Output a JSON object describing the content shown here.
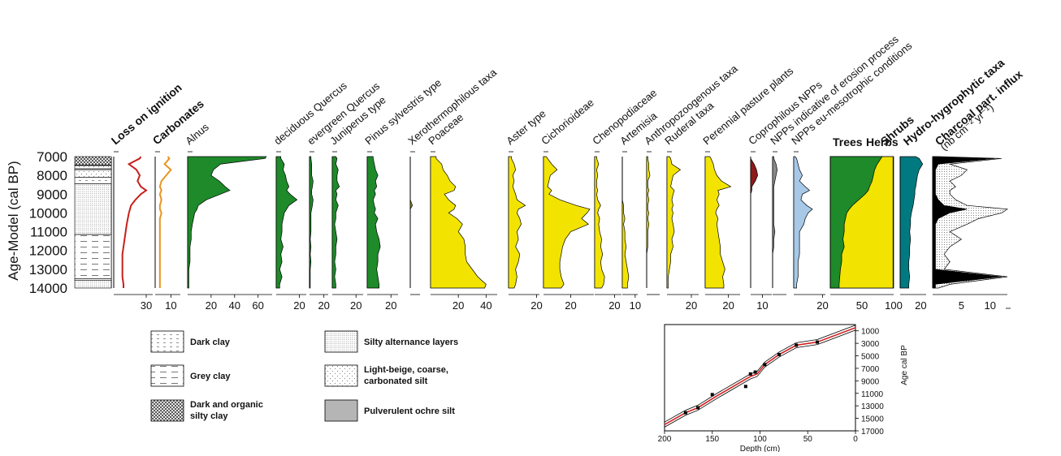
{
  "chart_data": [
    {
      "type": "area",
      "ylabel": "Age-Model (cal BP)",
      "yticks": [
        "7000",
        "8000",
        "9000",
        "10000",
        "11000",
        "12000",
        "13000",
        "14000"
      ],
      "ylim": [
        7000,
        14000
      ],
      "ages": [
        7000,
        7100,
        7400,
        7700,
        8000,
        8300,
        8600,
        8800,
        9000,
        9300,
        9600,
        9800,
        10000,
        10300,
        10600,
        11000,
        11400,
        11800,
        12200,
        12600,
        13000,
        13400,
        13800,
        14000
      ],
      "columns": [
        {
          "label": "Loss on ignition",
          "bold": true,
          "style": "line",
          "color": "#c8201c",
          "xmax": 36,
          "ticks": [
            30
          ],
          "values": [
            25,
            24,
            14,
            21,
            24,
            22,
            25,
            30,
            25,
            20,
            16,
            15,
            14,
            13,
            12,
            11,
            10,
            9,
            8,
            8,
            8,
            8,
            9,
            9
          ]
        },
        {
          "label": "Carbonates",
          "bold": true,
          "style": "line",
          "color": "#e69520",
          "xmax": 16,
          "ticks": [
            10
          ],
          "values": [
            8,
            9,
            6,
            10,
            7,
            4,
            3,
            4,
            3,
            4,
            3,
            3,
            4,
            3,
            3,
            3,
            3,
            3,
            3,
            3,
            3,
            3,
            3,
            3
          ]
        },
        {
          "label": "Alnus",
          "bold": false,
          "style": "area",
          "color": "#1e8a2a",
          "xmax": 72,
          "ticks": [
            20,
            40,
            60
          ],
          "values": [
            67,
            66,
            28,
            22,
            20,
            27,
            32,
            36,
            28,
            16,
            9,
            8,
            6,
            5,
            4,
            3,
            3,
            2,
            2,
            2,
            1,
            1,
            1,
            1
          ]
        },
        {
          "label": "deciduous Quercus",
          "bold": false,
          "style": "area",
          "color": "#1e8a2a",
          "xmax": 26,
          "ticks": [
            20
          ],
          "values": [
            4,
            4,
            7,
            6,
            8,
            9,
            11,
            9,
            12,
            18,
            11,
            9,
            7,
            6,
            5,
            5,
            4,
            6,
            4,
            5,
            3,
            5,
            3,
            3
          ]
        },
        {
          "label": "evergreen Quercus",
          "bold": false,
          "style": "area",
          "color": "#1e8a2a",
          "xmax": 26,
          "ticks": [
            20
          ],
          "values": [
            2,
            2,
            3,
            3,
            3,
            5,
            4,
            3,
            3,
            5,
            4,
            3,
            2,
            2,
            2,
            2,
            1,
            2,
            1,
            2,
            1,
            1,
            1,
            1
          ]
        },
        {
          "label": "Juniperus type",
          "bold": false,
          "style": "area",
          "color": "#1e8a2a",
          "xmax": 26,
          "ticks": [
            20
          ],
          "values": [
            3,
            4,
            3,
            5,
            4,
            4,
            6,
            3,
            4,
            3,
            5,
            4,
            3,
            3,
            2,
            3,
            4,
            3,
            3,
            2,
            3,
            2,
            3,
            3
          ]
        },
        {
          "label": "Pinus sylvestris type",
          "bold": false,
          "style": "area",
          "color": "#1e8a2a",
          "xmax": 26,
          "ticks": [
            20
          ],
          "values": [
            5,
            5,
            6,
            7,
            9,
            7,
            8,
            6,
            7,
            5,
            6,
            7,
            6,
            9,
            7,
            8,
            10,
            11,
            9,
            9,
            8,
            9,
            10,
            10
          ]
        },
        {
          "label": "Xerothermophilous taxa",
          "bold": false,
          "style": "area",
          "color": "#8a8a1a",
          "xmax": 9,
          "ticks": [],
          "values": [
            0,
            0,
            0,
            0,
            0,
            0,
            0,
            0,
            0,
            0,
            2,
            0,
            0,
            0,
            0,
            0,
            0,
            0,
            0,
            0,
            0,
            0,
            0,
            0
          ]
        },
        {
          "label": "Poaceae",
          "bold": false,
          "style": "area",
          "color": "#f2e400",
          "xmax": 48,
          "ticks": [
            20,
            40
          ],
          "values": [
            4,
            4,
            8,
            9,
            12,
            14,
            18,
            17,
            10,
            13,
            18,
            17,
            13,
            19,
            23,
            20,
            24,
            25,
            25,
            26,
            30,
            34,
            40,
            39
          ]
        },
        {
          "label": "Aster type",
          "bold": false,
          "style": "area",
          "color": "#f2e400",
          "xmax": 22,
          "ticks": [
            20
          ],
          "values": [
            2,
            2,
            4,
            5,
            3,
            4,
            3,
            4,
            5,
            6,
            12,
            7,
            6,
            8,
            9,
            6,
            7,
            5,
            8,
            7,
            5,
            6,
            5,
            4
          ]
        },
        {
          "label": "Cichorioideae",
          "bold": false,
          "style": "area",
          "color": "#f2e400",
          "xmax": 37,
          "ticks": [
            20
          ],
          "values": [
            2,
            3,
            6,
            10,
            5,
            4,
            3,
            6,
            4,
            12,
            24,
            34,
            32,
            28,
            33,
            20,
            16,
            14,
            13,
            12,
            12,
            13,
            15,
            13
          ]
        },
        {
          "label": "Chenopodiaceae",
          "bold": false,
          "style": "area",
          "color": "#f2e400",
          "xmax": 27,
          "ticks": [
            20
          ],
          "values": [
            2,
            2,
            4,
            2,
            3,
            2,
            2,
            3,
            2,
            3,
            6,
            4,
            3,
            5,
            4,
            5,
            7,
            6,
            8,
            6,
            7,
            10,
            9,
            7
          ]
        },
        {
          "label": "Artemisia",
          "bold": false,
          "style": "area",
          "color": "#f2e400",
          "xmax": 12,
          "ticks": [
            10
          ],
          "values": [
            0,
            0,
            0,
            0,
            0,
            0,
            0,
            0,
            0,
            0,
            1,
            1,
            1,
            2,
            1,
            2,
            2,
            3,
            2,
            3,
            4,
            5,
            4,
            4
          ]
        },
        {
          "label": "Anthropozoogenous taxa",
          "bold": false,
          "style": "area",
          "color": "#f2e400",
          "xmax": 12,
          "ticks": [],
          "values": [
            1,
            1,
            2,
            2,
            3,
            1,
            1,
            2,
            1,
            2,
            1,
            1,
            2,
            1,
            2,
            1,
            1,
            1,
            0,
            0,
            0,
            0,
            0,
            0
          ]
        },
        {
          "label": "Ruderal taxa",
          "bold": false,
          "style": "area",
          "color": "#f2e400",
          "xmax": 26,
          "ticks": [
            20
          ],
          "values": [
            2,
            3,
            4,
            11,
            5,
            4,
            3,
            6,
            5,
            4,
            5,
            4,
            5,
            4,
            5,
            6,
            4,
            5,
            3,
            3,
            2,
            1,
            1,
            1
          ]
        },
        {
          "label": "Perennial pasture plants",
          "bold": false,
          "style": "area",
          "color": "#f2e400",
          "xmax": 30,
          "ticks": [
            20
          ],
          "values": [
            4,
            5,
            7,
            8,
            10,
            14,
            22,
            11,
            12,
            10,
            12,
            10,
            9,
            11,
            10,
            11,
            12,
            13,
            13,
            15,
            17,
            15,
            16,
            16
          ]
        },
        {
          "label": "Coprophilous NPPs",
          "bold": false,
          "style": "area",
          "color": "#8c1a1a",
          "xmax": 18,
          "ticks": [
            10
          ],
          "values": [
            0,
            0,
            3,
            5,
            6,
            4,
            1,
            1,
            0,
            0,
            0,
            0,
            0,
            0,
            0,
            0,
            0,
            0,
            0,
            0,
            0,
            0,
            0,
            0
          ]
        },
        {
          "label": "NPPs indicative of erosion process",
          "bold": false,
          "style": "area",
          "color": "#8a8a8a",
          "xmax": 12,
          "ticks": [],
          "values": [
            1,
            1,
            3,
            4,
            3,
            2,
            1,
            1,
            1,
            1,
            1,
            1,
            1,
            1,
            1,
            2,
            1,
            1,
            0,
            0,
            0,
            0,
            0,
            0
          ]
        },
        {
          "label": "NPPs eu-mesotrophic conditions",
          "bold": false,
          "style": "area",
          "color": "#a7c8e6",
          "xmax": 22,
          "ticks": [
            20
          ],
          "values": [
            1,
            2,
            3,
            4,
            6,
            4,
            8,
            11,
            6,
            5,
            9,
            13,
            10,
            8,
            7,
            4,
            4,
            4,
            4,
            3,
            3,
            3,
            2,
            2
          ]
        }
      ]
    },
    {
      "type": "area",
      "series": [
        {
          "name": "Trees",
          "color": "#1e8a2a",
          "values": [
            82,
            80,
            74,
            70,
            68,
            66,
            62,
            60,
            55,
            45,
            35,
            30,
            26,
            24,
            22,
            22,
            20,
            22,
            18,
            18,
            16,
            15,
            14,
            14
          ]
        },
        {
          "name": "Herbs",
          "color": "#f2e400",
          "values": [
            99,
            99,
            99,
            99,
            99,
            99,
            99,
            99,
            99,
            99,
            99,
            99,
            99,
            99,
            99,
            99,
            99,
            99,
            99,
            99,
            99,
            99,
            99,
            99
          ]
        },
        {
          "name": "Shrubs",
          "color": "#1e8a2a",
          "values": [
            100,
            100,
            100,
            100,
            100,
            100,
            100,
            100,
            100,
            100,
            100,
            100,
            100,
            100,
            100,
            100,
            100,
            100,
            100,
            100,
            100,
            100,
            100,
            100
          ]
        }
      ],
      "xticks": [
        "50",
        "100"
      ],
      "xlim": [
        0,
        100
      ]
    },
    {
      "type": "area",
      "title": "Hydro-hygrophytic taxa",
      "color": "#007a80",
      "xticks": [
        "20"
      ],
      "values": [
        18,
        22,
        26,
        22,
        20,
        19,
        18,
        17,
        17,
        16,
        15,
        14,
        13,
        12,
        12,
        11,
        12,
        11,
        11,
        10,
        10,
        11,
        10,
        10
      ]
    },
    {
      "type": "area",
      "title": "Charcoal part. influx",
      "subtitle": "(nb cm⁻² yr⁻¹)",
      "xticks": [
        "5",
        "10"
      ],
      "xlim": [
        0,
        13
      ],
      "envelope_values": [
        1,
        12,
        3,
        6,
        5,
        3,
        4,
        3,
        3,
        4,
        6,
        13,
        12,
        8,
        6,
        3,
        5,
        3,
        2,
        3,
        2,
        13,
        3,
        1
      ],
      "black_values": [
        0.5,
        11,
        1,
        0.5,
        0.5,
        0.5,
        0.5,
        0.5,
        0.5,
        1,
        2,
        6,
        3,
        1,
        0.5,
        0.5,
        0.5,
        0.5,
        0.5,
        0.5,
        0.5,
        12,
        0.5,
        0.5
      ]
    },
    {
      "type": "line",
      "xlabel": "Depth (cm)",
      "ylabel": "Age cal BP",
      "xlim": [
        200,
        0
      ],
      "ylim": [
        0,
        17000
      ],
      "xticks": [
        "200",
        "150",
        "100",
        "50",
        "0"
      ],
      "yticks": [
        "1000",
        "3000",
        "5000",
        "7000",
        "9000",
        "11000",
        "13000",
        "15000",
        "17000"
      ],
      "depth": [
        0,
        40,
        62,
        80,
        95,
        103,
        110,
        145,
        165,
        178,
        200
      ],
      "age": [
        500,
        2800,
        3300,
        4800,
        6400,
        7900,
        8300,
        11400,
        13300,
        14100,
        16000
      ],
      "control_depth": [
        40,
        62,
        80,
        95,
        105,
        110,
        115,
        150,
        165,
        178
      ],
      "control_age": [
        2800,
        3300,
        4800,
        6400,
        7600,
        7900,
        9900,
        11200,
        13300,
        14100
      ]
    }
  ],
  "legend": {
    "items": [
      {
        "label": "Dark clay",
        "pattern": "dashes"
      },
      {
        "label": "Grey clay",
        "pattern": "long-dashes"
      },
      {
        "label": "Dark and organic silty clay",
        "line1": "Dark and organic",
        "line2": "silty clay",
        "pattern": "crosshatch"
      },
      {
        "label": "Silty alternance layers",
        "pattern": "fine-dots"
      },
      {
        "label": "Light-beige, coarse, carbonated silt",
        "line1": "Light-beige, coarse,",
        "line2": "carbonated silt",
        "pattern": "sparse-dots"
      },
      {
        "label": "Pulverulent ochre silt",
        "pattern": "grey-fill"
      }
    ]
  },
  "labels": {
    "trees": "Trees",
    "herbs": "Herbs",
    "shrubs": "Shrubs",
    "hydro": "Hydro-hygrophytic taxa",
    "charcoal": "Charcoal part. influx",
    "charcoal_units": "(nb cm⁻² yr⁻¹)"
  }
}
